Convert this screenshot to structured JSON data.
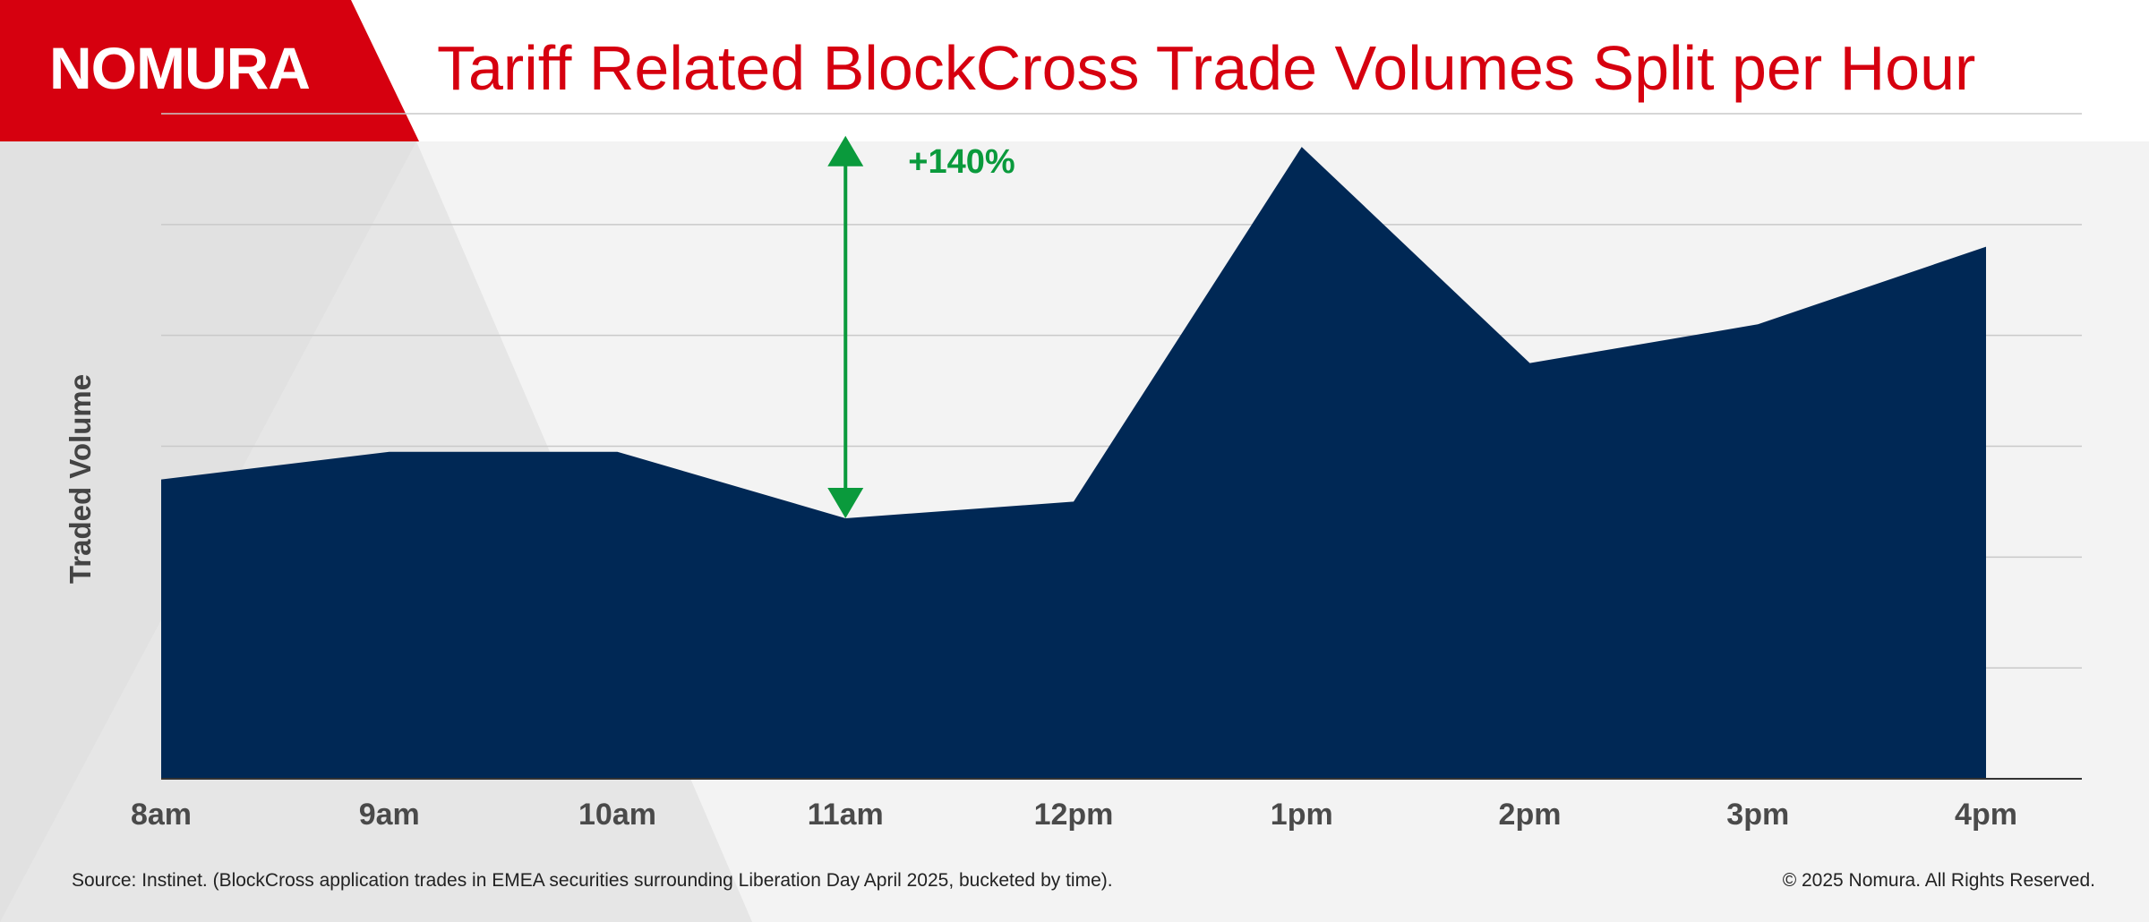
{
  "brand": {
    "logo_text": "NOMURA",
    "brand_color": "#d6000f",
    "area_color": "#002855",
    "annotation_color": "#0a9a3c"
  },
  "chart_data": {
    "type": "area",
    "title": "Tariff Related BlockCross Trade Volumes Split per Hour",
    "xlabel": "",
    "ylabel": "Traded Volume",
    "categories": [
      "8am",
      "9am",
      "10am",
      "11am",
      "12pm",
      "1pm",
      "2pm",
      "3pm",
      "4pm"
    ],
    "values": [
      2.7,
      2.95,
      2.95,
      2.35,
      2.5,
      5.7,
      3.75,
      4.1,
      4.8
    ],
    "ylim": [
      0,
      6
    ],
    "grid": true,
    "legend": "none",
    "annotations": [
      {
        "text": "+140%",
        "type": "double-arrow",
        "x": "11am",
        "y_from": 2.35,
        "y_to": 5.8
      }
    ]
  },
  "footer": {
    "source": "Source: Instinet. (BlockCross application trades in EMEA securities surrounding Liberation Day April 2025, bucketed by time).",
    "copyright": "© 2025 Nomura. All Rights Reserved."
  }
}
